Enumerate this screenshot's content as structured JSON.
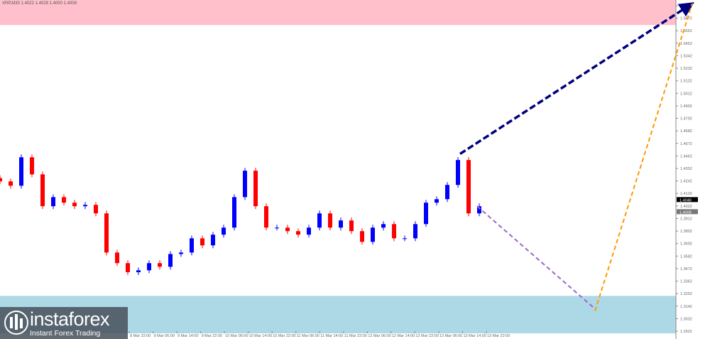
{
  "header": {
    "symbol_line": "XRP,M30  1.4022 1.4029 1.4000 1.4008"
  },
  "logo": {
    "brand": "instaforex",
    "tagline": "Instant Forex Trading"
  },
  "colors": {
    "bull": "#0000ff",
    "bear": "#ff0000",
    "resistance_zone": "#ffc0cb",
    "support_zone": "#add8e6",
    "arrow_main": "#00007f",
    "arrow_correction": "#9966cc",
    "arrow_target": "#ff9900"
  },
  "chart_data": {
    "type": "candlestick",
    "timeframe": "M30",
    "ylim": [
      1.2922,
      1.5782
    ],
    "y_ticks": [
      "1.5782",
      "1.5672",
      "1.5562",
      "1.5452",
      "1.5342",
      "1.5232",
      "1.5122",
      "1.5012",
      "1.4902",
      "1.4792",
      "1.4682",
      "1.4572",
      "1.4462",
      "1.4352",
      "1.4242",
      "1.4132",
      "1.4022",
      "1.3912",
      "1.3802",
      "1.3692",
      "1.3582",
      "1.3472",
      "1.3362",
      "1.3252",
      "1.3142",
      "1.3032",
      "1.2922"
    ],
    "x_ticks": [
      "8 Mar 22:00",
      "9 Mar 06:00",
      "9 Mar 14:00",
      "9 Mar 22:00",
      "10 Mar 06:00",
      "10 Mar 14:00",
      "10 Mar 22:00",
      "11 Mar 06:00",
      "11 Mar 14:00",
      "11 Mar 22:00",
      "12 Mar 06:00",
      "12 Mar 14:00",
      "12 Mar 22:00",
      "13 Mar 06:00",
      "13 Mar 14:00",
      "13 Mar 22:00"
    ],
    "closes": [
      1.4238,
      1.42,
      1.445,
      1.43,
      1.402,
      1.41,
      1.4051,
      1.402,
      1.4032,
      1.3957,
      1.3613,
      1.352,
      1.344,
      1.3457,
      1.352,
      1.3488,
      1.36,
      1.3613,
      1.3738,
      1.3676,
      1.377,
      1.3832,
      1.41,
      1.4332,
      1.402,
      1.3832,
      1.3832,
      1.3801,
      1.377,
      1.3832,
      1.3957,
      1.3832,
      1.3895,
      1.3801,
      1.3707,
      1.3832,
      1.3863,
      1.3738,
      1.3738,
      1.3863,
      1.4051,
      1.4082,
      1.4207,
      1.4426,
      1.3957,
      1.402
    ],
    "price_labels": {
      "ask": "1.4048",
      "bid": "1.4008"
    },
    "zones": [
      {
        "name": "resistance",
        "from": 1.5612,
        "to": 1.5782
      },
      {
        "name": "support",
        "from": 1.2922,
        "to": 1.3182
      }
    ],
    "forecast_arrows": [
      {
        "name": "main",
        "from_price": 1.448,
        "to_price": 1.5782
      },
      {
        "name": "correction",
        "from_price": 1.402,
        "to_price": 1.31
      },
      {
        "name": "target",
        "from_price": 1.31,
        "to_price": 1.5782
      }
    ]
  }
}
